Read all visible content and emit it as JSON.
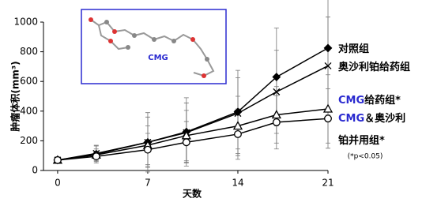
{
  "chart_data": {
    "type": "line",
    "y_label": "肿瘤体积(mm³)",
    "x_label": "天数",
    "annotation": "(*p<0.05)",
    "inset_label": "CMG",
    "xlim": [
      -1.1,
      21
    ],
    "xticks": [
      0,
      7,
      14,
      21
    ],
    "ylim": [
      0,
      1000
    ],
    "yticks": [
      0,
      200,
      400,
      600,
      800,
      1000
    ],
    "x": [
      0,
      3,
      7,
      10,
      14,
      17,
      21
    ],
    "series": [
      {
        "name": "对照组",
        "color": "#000000",
        "marker": "diamond",
        "values": [
          70,
          110,
          190,
          260,
          395,
          630,
          825
        ],
        "errors": [
          20,
          60,
          200,
          230,
          280,
          330,
          410
        ]
      },
      {
        "name": "奥沙利铂给药组",
        "color": "#000000",
        "marker": "cross",
        "values": [
          70,
          115,
          190,
          255,
          385,
          530,
          705
        ],
        "errors": [
          20,
          50,
          170,
          200,
          240,
          280,
          330
        ]
      },
      {
        "name": "CMG给药组*",
        "color": "#000000",
        "marker": "triangle",
        "values": [
          70,
          105,
          170,
          235,
          300,
          375,
          415
        ],
        "errors": [
          20,
          40,
          130,
          170,
          200,
          190,
          230
        ]
      },
      {
        "name": "CMG＆奥沙利铂并用组*",
        "color": "#000000",
        "marker": "circle",
        "values": [
          70,
          95,
          140,
          190,
          245,
          325,
          350
        ],
        "errors": [
          20,
          35,
          110,
          140,
          170,
          180,
          200
        ]
      }
    ]
  }
}
